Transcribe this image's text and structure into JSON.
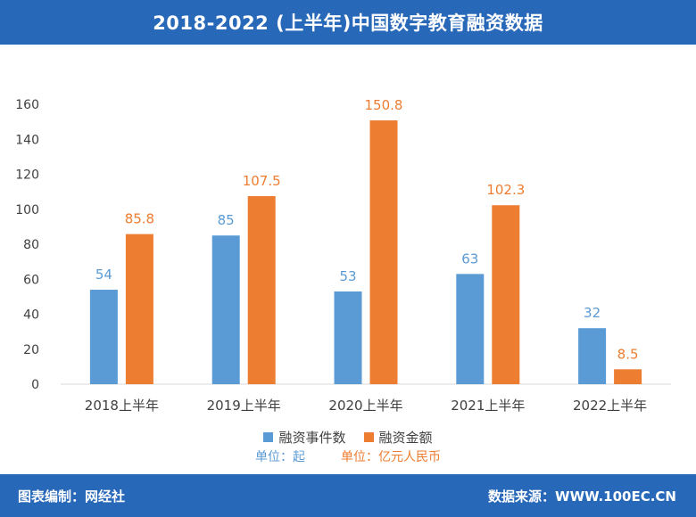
{
  "header": {
    "title": "2018-2022 (上半年)中国数字教育融资数据"
  },
  "footer": {
    "left": "图表编制：网经社",
    "right": "数据来源：WWW.100EC.CN"
  },
  "legend": {
    "series1": "融资事件数",
    "series2": "融资金额"
  },
  "units": {
    "series1": "单位：起",
    "series2": "单位：亿元人民币"
  },
  "colors": {
    "header": "#2868b8",
    "series1": "#5b9bd5",
    "series2": "#ed7d31",
    "axis_text": "#404040"
  },
  "chart_data": {
    "type": "bar",
    "categories": [
      "2018上半年",
      "2019上半年",
      "2020上半年",
      "2021上半年",
      "2022上半年"
    ],
    "series": [
      {
        "name": "融资事件数",
        "values": [
          54,
          85,
          53,
          63,
          32
        ]
      },
      {
        "name": "融资金额",
        "values": [
          85.8,
          107.5,
          150.8,
          102.3,
          8.5
        ]
      }
    ],
    "title": "2018-2022 (上半年)中国数字教育融资数据",
    "xlabel": "",
    "ylabel": "",
    "ylim": [
      0,
      160
    ],
    "yticks": [
      0,
      20,
      40,
      60,
      80,
      100,
      120,
      140,
      160
    ],
    "grid": false,
    "legend_position": "bottom"
  }
}
